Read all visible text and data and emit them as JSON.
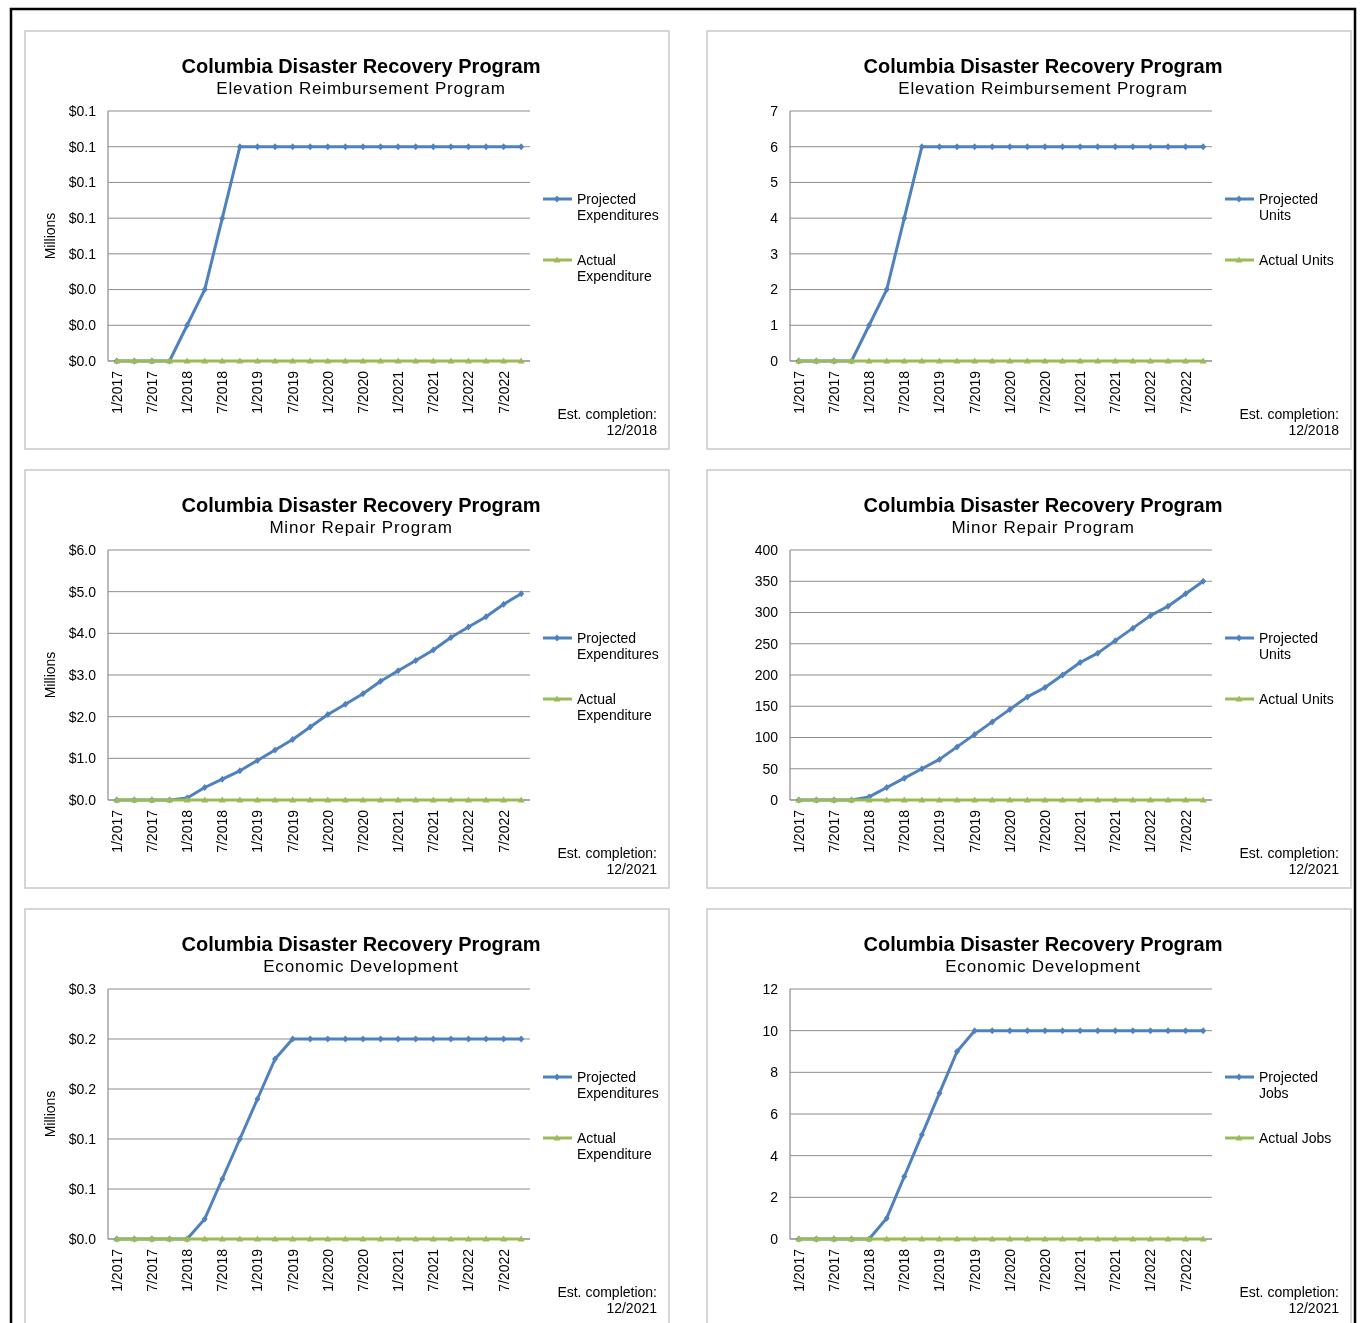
{
  "chart_data": [
    {
      "type": "line",
      "title": "Columbia Disaster Recovery Program",
      "subtitle": "Elevation Reimbursement Program",
      "ylabel": "Millions",
      "annotations": [
        "Est. completion:\n12/2018"
      ],
      "categories": [
        "1/2017",
        null,
        "7/2017",
        null,
        "1/2018",
        null,
        "7/2018",
        null,
        "1/2019",
        null,
        "7/2019",
        null,
        "1/2020",
        null,
        "7/2020",
        null,
        "1/2021",
        null,
        "7/2021",
        null,
        "1/2022",
        null,
        "7/2022",
        null
      ],
      "ylim": [
        0,
        0.14
      ],
      "yticks": [
        {
          "value": 0,
          "label": "$0.0"
        },
        {
          "value": 0.02,
          "label": "$0.0"
        },
        {
          "value": 0.04,
          "label": "$0.0"
        },
        {
          "value": 0.06,
          "label": "$0.1"
        },
        {
          "value": 0.08,
          "label": "$0.1"
        },
        {
          "value": 0.1,
          "label": "$0.1"
        },
        {
          "value": 0.12,
          "label": "$0.1"
        },
        {
          "value": 0.14,
          "label": "$0.1"
        }
      ],
      "grid": "y",
      "legend": "right",
      "series": [
        {
          "name": "Projected Expenditures",
          "color": "#4f81bd",
          "marker": "diamond",
          "values": [
            0,
            0,
            0,
            0,
            0.02,
            0.04,
            0.08,
            0.12,
            0.12,
            0.12,
            0.12,
            0.12,
            0.12,
            0.12,
            0.12,
            0.12,
            0.12,
            0.12,
            0.12,
            0.12,
            0.12,
            0.12,
            0.12,
            0.12
          ]
        },
        {
          "name": "Actual Expenditure",
          "color": "#9bbb59",
          "marker": "triangle",
          "values": [
            0,
            0,
            0,
            0,
            0,
            0,
            0,
            0,
            0,
            0,
            0,
            0,
            0,
            0,
            0,
            0,
            0,
            0,
            0,
            0,
            0,
            0,
            0,
            0
          ]
        }
      ]
    },
    {
      "type": "line",
      "title": "Columbia Disaster Recovery Program",
      "subtitle": "Elevation Reimbursement Program",
      "annotations": [
        "Est. completion:\n12/2018"
      ],
      "categories": [
        "1/2017",
        null,
        "7/2017",
        null,
        "1/2018",
        null,
        "7/2018",
        null,
        "1/2019",
        null,
        "7/2019",
        null,
        "1/2020",
        null,
        "7/2020",
        null,
        "1/2021",
        null,
        "7/2021",
        null,
        "1/2022",
        null,
        "7/2022",
        null
      ],
      "ylim": [
        0,
        7
      ],
      "yticks": [
        0,
        1,
        2,
        3,
        4,
        5,
        6,
        7
      ],
      "grid": "y",
      "legend": "right",
      "series": [
        {
          "name": "Projected Units",
          "color": "#4f81bd",
          "marker": "diamond",
          "values": [
            0,
            0,
            0,
            0,
            1,
            2,
            4,
            6,
            6,
            6,
            6,
            6,
            6,
            6,
            6,
            6,
            6,
            6,
            6,
            6,
            6,
            6,
            6,
            6
          ]
        },
        {
          "name": "Actual Units",
          "color": "#9bbb59",
          "marker": "triangle",
          "values": [
            0,
            0,
            0,
            0,
            0,
            0,
            0,
            0,
            0,
            0,
            0,
            0,
            0,
            0,
            0,
            0,
            0,
            0,
            0,
            0,
            0,
            0,
            0,
            0
          ]
        }
      ]
    },
    {
      "type": "line",
      "title": "Columbia Disaster Recovery Program",
      "subtitle": "Minor Repair Program",
      "ylabel": "Millions",
      "annotations": [
        "Est. completion:\n12/2021"
      ],
      "categories": [
        "1/2017",
        null,
        "7/2017",
        null,
        "1/2018",
        null,
        "7/2018",
        null,
        "1/2019",
        null,
        "7/2019",
        null,
        "1/2020",
        null,
        "7/2020",
        null,
        "1/2021",
        null,
        "7/2021",
        null,
        "1/2022",
        null,
        "7/2022",
        null
      ],
      "ylim": [
        0,
        6
      ],
      "yticks": [
        {
          "value": 0,
          "label": "$0.0"
        },
        {
          "value": 1,
          "label": "$1.0"
        },
        {
          "value": 2,
          "label": "$2.0"
        },
        {
          "value": 3,
          "label": "$3.0"
        },
        {
          "value": 4,
          "label": "$4.0"
        },
        {
          "value": 5,
          "label": "$5.0"
        },
        {
          "value": 6,
          "label": "$6.0"
        }
      ],
      "grid": "y",
      "legend": "right",
      "series": [
        {
          "name": "Projected Expenditures",
          "color": "#4f81bd",
          "marker": "diamond",
          "values": [
            0,
            0,
            0,
            0,
            0.05,
            0.3,
            0.5,
            0.7,
            0.95,
            1.2,
            1.45,
            1.75,
            2.05,
            2.3,
            2.55,
            2.85,
            3.1,
            3.35,
            3.6,
            3.9,
            4.15,
            4.4,
            4.7,
            4.95
          ]
        },
        {
          "name": "Actual Expenditure",
          "color": "#9bbb59",
          "marker": "triangle",
          "values": [
            0,
            0,
            0,
            0,
            0,
            0,
            0,
            0,
            0,
            0,
            0,
            0,
            0,
            0,
            0,
            0,
            0,
            0,
            0,
            0,
            0,
            0,
            0,
            0
          ]
        }
      ]
    },
    {
      "type": "line",
      "title": "Columbia Disaster Recovery Program",
      "subtitle": "Minor Repair Program",
      "annotations": [
        "Est. completion:\n12/2021"
      ],
      "categories": [
        "1/2017",
        null,
        "7/2017",
        null,
        "1/2018",
        null,
        "7/2018",
        null,
        "1/2019",
        null,
        "7/2019",
        null,
        "1/2020",
        null,
        "7/2020",
        null,
        "1/2021",
        null,
        "7/2021",
        null,
        "1/2022",
        null,
        "7/2022",
        null
      ],
      "ylim": [
        0,
        400
      ],
      "yticks": [
        0,
        50,
        100,
        150,
        200,
        250,
        300,
        350,
        400
      ],
      "grid": "y",
      "legend": "right",
      "series": [
        {
          "name": "Projected Units",
          "color": "#4f81bd",
          "marker": "diamond",
          "values": [
            0,
            0,
            0,
            0,
            5,
            20,
            35,
            50,
            65,
            85,
            105,
            125,
            145,
            165,
            180,
            200,
            220,
            235,
            255,
            275,
            295,
            310,
            330,
            350
          ]
        },
        {
          "name": "Actual Units",
          "color": "#9bbb59",
          "marker": "triangle",
          "values": [
            0,
            0,
            0,
            0,
            0,
            0,
            0,
            0,
            0,
            0,
            0,
            0,
            0,
            0,
            0,
            0,
            0,
            0,
            0,
            0,
            0,
            0,
            0,
            0
          ]
        }
      ]
    },
    {
      "type": "line",
      "title": "Columbia Disaster Recovery Program",
      "subtitle": "Economic Development",
      "ylabel": "Millions",
      "annotations": [
        "Est. completion:\n12/2021"
      ],
      "categories": [
        "1/2017",
        null,
        "7/2017",
        null,
        "1/2018",
        null,
        "7/2018",
        null,
        "1/2019",
        null,
        "7/2019",
        null,
        "1/2020",
        null,
        "7/2020",
        null,
        "1/2021",
        null,
        "7/2021",
        null,
        "1/2022",
        null,
        "7/2022",
        null
      ],
      "ylim": [
        0,
        0.25
      ],
      "yticks": [
        {
          "value": 0,
          "label": "$0.0"
        },
        {
          "value": 0.05,
          "label": "$0.1"
        },
        {
          "value": 0.1,
          "label": "$0.1"
        },
        {
          "value": 0.15,
          "label": "$0.2"
        },
        {
          "value": 0.2,
          "label": "$0.2"
        },
        {
          "value": 0.25,
          "label": "$0.3"
        }
      ],
      "grid": "y",
      "legend": "right",
      "series": [
        {
          "name": "Projected Expenditures",
          "color": "#4f81bd",
          "marker": "diamond",
          "values": [
            0,
            0,
            0,
            0,
            0,
            0.02,
            0.06,
            0.1,
            0.14,
            0.18,
            0.2,
            0.2,
            0.2,
            0.2,
            0.2,
            0.2,
            0.2,
            0.2,
            0.2,
            0.2,
            0.2,
            0.2,
            0.2,
            0.2
          ]
        },
        {
          "name": "Actual Expenditure",
          "color": "#9bbb59",
          "marker": "triangle",
          "values": [
            0,
            0,
            0,
            0,
            0,
            0,
            0,
            0,
            0,
            0,
            0,
            0,
            0,
            0,
            0,
            0,
            0,
            0,
            0,
            0,
            0,
            0,
            0,
            0
          ]
        }
      ]
    },
    {
      "type": "line",
      "title": "Columbia Disaster Recovery Program",
      "subtitle": "Economic Development",
      "annotations": [
        "Est. completion:\n12/2021"
      ],
      "categories": [
        "1/2017",
        null,
        "7/2017",
        null,
        "1/2018",
        null,
        "7/2018",
        null,
        "1/2019",
        null,
        "7/2019",
        null,
        "1/2020",
        null,
        "7/2020",
        null,
        "1/2021",
        null,
        "7/2021",
        null,
        "1/2022",
        null,
        "7/2022",
        null
      ],
      "ylim": [
        0,
        12
      ],
      "yticks": [
        0,
        2,
        4,
        6,
        8,
        10,
        12
      ],
      "grid": "y",
      "legend": "right",
      "series": [
        {
          "name": "Projected Jobs",
          "color": "#4f81bd",
          "marker": "diamond",
          "values": [
            0,
            0,
            0,
            0,
            0,
            1,
            3,
            5,
            7,
            9,
            10,
            10,
            10,
            10,
            10,
            10,
            10,
            10,
            10,
            10,
            10,
            10,
            10,
            10
          ]
        },
        {
          "name": "Actual Jobs",
          "color": "#9bbb59",
          "marker": "triangle",
          "values": [
            0,
            0,
            0,
            0,
            0,
            0,
            0,
            0,
            0,
            0,
            0,
            0,
            0,
            0,
            0,
            0,
            0,
            0,
            0,
            0,
            0,
            0,
            0,
            0
          ]
        }
      ]
    }
  ]
}
